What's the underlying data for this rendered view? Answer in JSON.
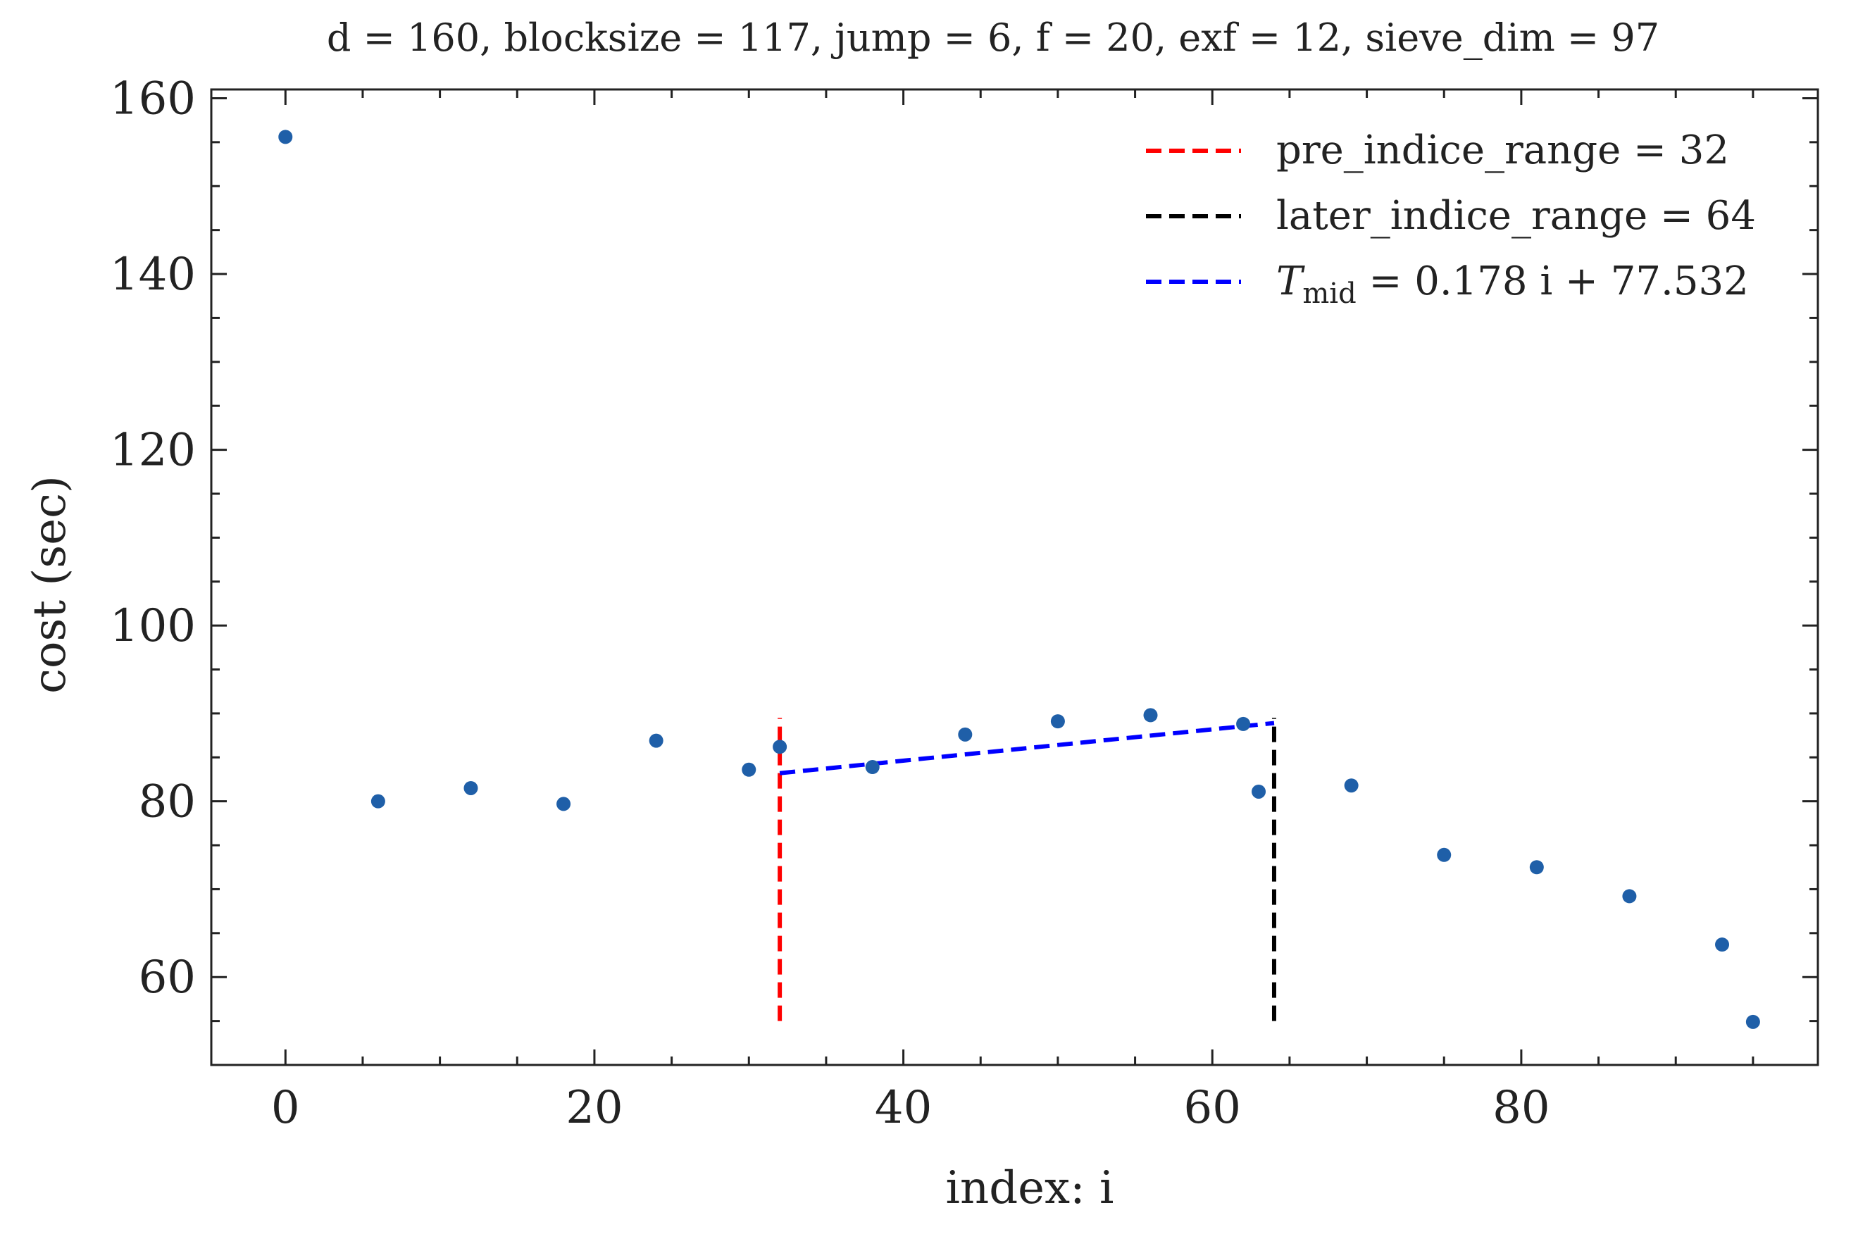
{
  "chart_data": {
    "type": "scatter",
    "title": "d = 160, blocksize = 117, jump = 6, f = 20, exf = 12, sieve_dim = 97",
    "xlabel": "index: i",
    "ylabel": "cost (sec)",
    "xlim": [
      -4.8,
      99.2
    ],
    "ylim": [
      50,
      161
    ],
    "x_ticks": [
      0,
      20,
      40,
      60,
      80
    ],
    "y_ticks": [
      60,
      80,
      100,
      120,
      140,
      160
    ],
    "x_minor_step": 5,
    "y_minor_step": 5,
    "grid": false,
    "legend_position": "top-right",
    "marker_color": "#1f5fa8",
    "points": [
      {
        "x": 0,
        "y": 155.6
      },
      {
        "x": 6,
        "y": 80.0
      },
      {
        "x": 12,
        "y": 81.5
      },
      {
        "x": 18,
        "y": 79.7
      },
      {
        "x": 24,
        "y": 86.9
      },
      {
        "x": 30,
        "y": 83.6
      },
      {
        "x": 32,
        "y": 86.2
      },
      {
        "x": 38,
        "y": 83.9
      },
      {
        "x": 44,
        "y": 87.6
      },
      {
        "x": 50,
        "y": 89.1
      },
      {
        "x": 56,
        "y": 89.8
      },
      {
        "x": 62,
        "y": 88.8
      },
      {
        "x": 63,
        "y": 81.1
      },
      {
        "x": 69,
        "y": 81.8
      },
      {
        "x": 75,
        "y": 73.9
      },
      {
        "x": 81,
        "y": 72.5
      },
      {
        "x": 87,
        "y": 69.2
      },
      {
        "x": 93,
        "y": 63.7
      },
      {
        "x": 95,
        "y": 54.9
      }
    ],
    "lines": [
      {
        "name": "pre_indice_range = 32",
        "color": "#ff0000",
        "style": "dashed",
        "points": [
          {
            "x": 32,
            "y": 55
          },
          {
            "x": 32,
            "y": 89.5
          }
        ]
      },
      {
        "name": "later_indice_range = 64",
        "color": "#000000",
        "style": "dashed",
        "points": [
          {
            "x": 64,
            "y": 55
          },
          {
            "x": 64,
            "y": 89.5
          }
        ]
      },
      {
        "name_math": "T",
        "name_sub": "mid",
        "name_rest": "= 0.178 i + 77.532",
        "color": "#0000ff",
        "style": "dashed",
        "points": [
          {
            "x": 32,
            "y": 83.2
          },
          {
            "x": 64,
            "y": 88.9
          }
        ]
      }
    ]
  }
}
